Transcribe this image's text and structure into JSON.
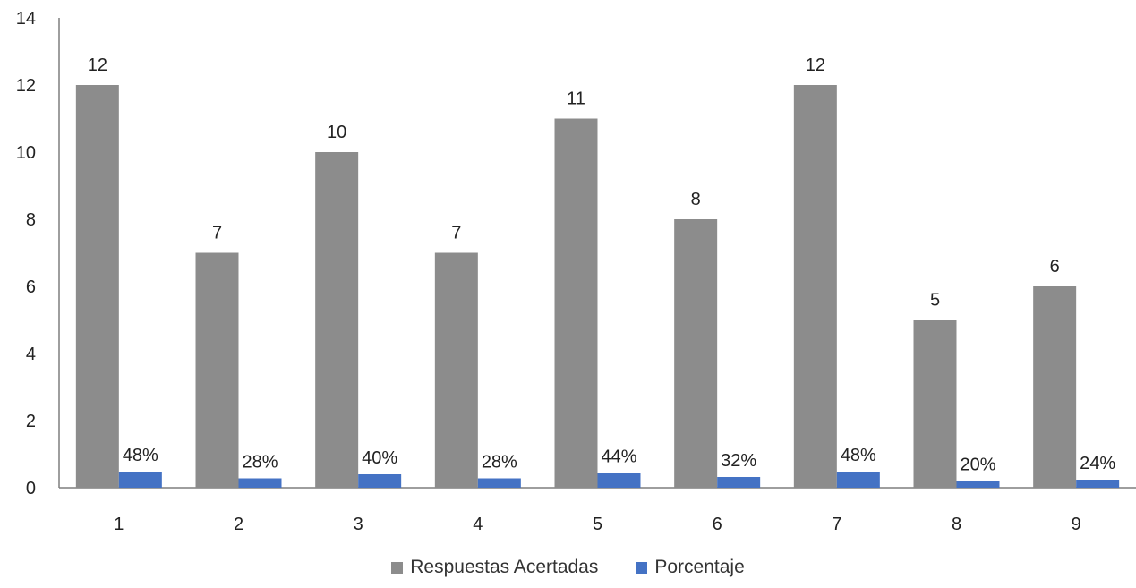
{
  "chart_data": {
    "type": "bar",
    "categories": [
      "1",
      "2",
      "3",
      "4",
      "5",
      "6",
      "7",
      "8",
      "9"
    ],
    "series": [
      {
        "name": "Respuestas Acertadas",
        "color": "#8c8c8c",
        "values": [
          12,
          7,
          10,
          7,
          11,
          8,
          12,
          5,
          6
        ],
        "labels": [
          "12",
          "7",
          "10",
          "7",
          "11",
          "8",
          "12",
          "5",
          "6"
        ]
      },
      {
        "name": "Porcentaje",
        "color": "#4472c4",
        "values": [
          0.48,
          0.28,
          0.4,
          0.28,
          0.44,
          0.32,
          0.48,
          0.2,
          0.24
        ],
        "labels": [
          "48%",
          "28%",
          "40%",
          "28%",
          "44%",
          "32%",
          "48%",
          "20%",
          "24%"
        ]
      }
    ],
    "ylim": [
      0,
      14
    ],
    "yticks": [
      "0",
      "2",
      "4",
      "6",
      "8",
      "10",
      "12",
      "14"
    ],
    "grid": false,
    "legend_position": "bottom"
  }
}
